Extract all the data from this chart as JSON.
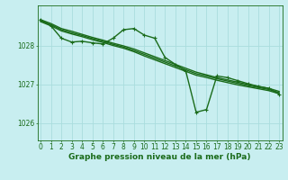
{
  "bg_color": "#c8eef0",
  "grid_color": "#aadddd",
  "line_color": "#1a6b1a",
  "xlabel": "Graphe pression niveau de la mer (hPa)",
  "xlabel_fontsize": 6.5,
  "tick_fontsize": 5.5,
  "xlim": [
    -0.3,
    23.3
  ],
  "ylim": [
    1025.55,
    1029.05
  ],
  "yticks": [
    1026,
    1027,
    1028
  ],
  "xticks": [
    0,
    1,
    2,
    3,
    4,
    5,
    6,
    7,
    8,
    9,
    10,
    11,
    12,
    13,
    14,
    15,
    16,
    17,
    18,
    19,
    20,
    21,
    22,
    23
  ],
  "series": [
    {
      "x": [
        0,
        1,
        2,
        3,
        4,
        5,
        6,
        7,
        8,
        9,
        10,
        11,
        12,
        13,
        14,
        15,
        16,
        17,
        18,
        19,
        20,
        21,
        22,
        23
      ],
      "y": [
        1028.68,
        1028.58,
        1028.45,
        1028.38,
        1028.3,
        1028.22,
        1028.15,
        1028.07,
        1028.0,
        1027.92,
        1027.82,
        1027.72,
        1027.62,
        1027.52,
        1027.42,
        1027.32,
        1027.25,
        1027.18,
        1027.12,
        1027.06,
        1027.0,
        1026.95,
        1026.9,
        1026.82
      ],
      "marker": false,
      "lw": 1.0
    },
    {
      "x": [
        0,
        1,
        2,
        3,
        4,
        5,
        6,
        7,
        8,
        9,
        10,
        11,
        12,
        13,
        14,
        15,
        16,
        17,
        18,
        19,
        20,
        21,
        22,
        23
      ],
      "y": [
        1028.65,
        1028.55,
        1028.42,
        1028.34,
        1028.27,
        1028.19,
        1028.12,
        1028.04,
        1027.97,
        1027.88,
        1027.78,
        1027.68,
        1027.58,
        1027.48,
        1027.38,
        1027.28,
        1027.22,
        1027.15,
        1027.09,
        1027.03,
        1026.97,
        1026.92,
        1026.87,
        1026.79
      ],
      "marker": false,
      "lw": 1.0
    },
    {
      "x": [
        0,
        1,
        2,
        3,
        4,
        5,
        6,
        7,
        8,
        9,
        10,
        11,
        12,
        13,
        14,
        15,
        16,
        17,
        18,
        19,
        20,
        21,
        22,
        23
      ],
      "y": [
        1028.63,
        1028.52,
        1028.39,
        1028.31,
        1028.24,
        1028.16,
        1028.09,
        1028.01,
        1027.94,
        1027.85,
        1027.74,
        1027.64,
        1027.54,
        1027.44,
        1027.34,
        1027.24,
        1027.18,
        1027.11,
        1027.05,
        1026.99,
        1026.94,
        1026.89,
        1026.84,
        1026.76
      ],
      "marker": false,
      "lw": 1.0
    },
    {
      "x": [
        0,
        1,
        2,
        3,
        4,
        5,
        6,
        7,
        8,
        9,
        10,
        11,
        12,
        13,
        14,
        15,
        16,
        17,
        18,
        19,
        20,
        21,
        22,
        23
      ],
      "y": [
        1028.68,
        1028.52,
        1028.2,
        1028.1,
        1028.12,
        1028.08,
        1028.05,
        1028.2,
        1028.42,
        1028.45,
        1028.28,
        1028.2,
        1027.7,
        1027.52,
        1027.35,
        1026.28,
        1026.35,
        1027.22,
        1027.18,
        1027.1,
        1027.02,
        1026.95,
        1026.9,
        1026.75
      ],
      "marker": true,
      "lw": 1.0
    }
  ]
}
